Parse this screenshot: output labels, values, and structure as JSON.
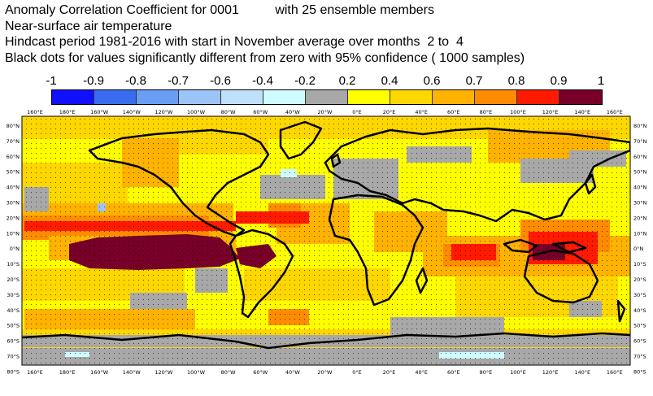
{
  "title": {
    "line1": "Anomaly Correlation Coefficient for 0001          with 25 ensemble members",
    "line2": "Near-surface air temperature",
    "line3": "Hindcast period 1981-2016 with start in November average over months  2 to  4",
    "line4": "Black dots for values significantly different from zero with 95% confidence ( 1000 samples)"
  },
  "colorbar": {
    "labels": [
      "-1",
      "-0.9",
      "-0.8",
      "-0.7",
      "-0.6",
      "-0.4",
      "-0.2",
      "0.2",
      "0.4",
      "0.6",
      "0.7",
      "0.8",
      "0.9",
      "1"
    ],
    "colors": [
      "#1010ff",
      "#3a6cf0",
      "#6a9ef5",
      "#9cc4f7",
      "#bfe0fa",
      "#cffaff",
      "#a8a8a8",
      "#ffff00",
      "#ffd700",
      "#ffb300",
      "#ff8c00",
      "#ff1a00",
      "#780028"
    ]
  },
  "map": {
    "lon_labels_top": [
      "160°E",
      "180°E",
      "160°W",
      "140°W",
      "120°W",
      "100°W",
      "80°W",
      "60°W",
      "40°W",
      "20°W",
      "0°E",
      "20°E",
      "40°E",
      "60°E",
      "80°E",
      "100°E",
      "120°E",
      "140°E",
      "160°E"
    ],
    "lon_labels_bottom": [
      "160°E",
      "180°E",
      "160°W",
      "140°W",
      "120°W",
      "100°W",
      "80°W",
      "60°W",
      "40°W",
      "20°W",
      "0°E",
      "20°E",
      "40°E",
      "60°E",
      "80°E",
      "100°E",
      "120°E",
      "140°E",
      "160°E"
    ],
    "lat_labels_left": [
      "80°N",
      "70°N",
      "60°N",
      "50°N",
      "40°N",
      "30°N",
      "20°N",
      "10°N",
      "0°N",
      "10°S",
      "20°S",
      "30°S",
      "40°S",
      "50°S",
      "60°S",
      "70°S",
      "80°S"
    ],
    "lat_labels_right": [
      "80°N",
      "70°N",
      "60°N",
      "50°N",
      "40°N",
      "30°N",
      "20°N",
      "10°N",
      "0°N",
      "10°S",
      "20°S",
      "30°S",
      "40°S",
      "50°S",
      "60°S",
      "70°S",
      "80°S"
    ]
  }
}
